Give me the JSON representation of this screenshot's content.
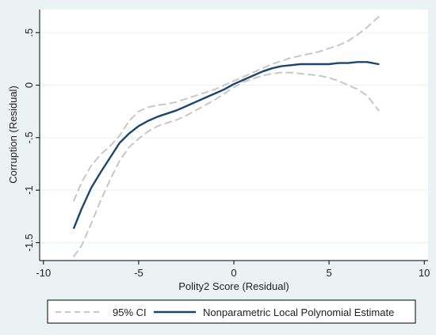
{
  "chart_data": {
    "type": "line",
    "title": "",
    "xlabel": "Polity2 Score (Residual)",
    "ylabel": "Corruption (Residual)",
    "xlim": [
      -10.2,
      10.2
    ],
    "ylim": [
      -1.67,
      0.72
    ],
    "x_ticks": [
      -10,
      -5,
      0,
      5,
      10
    ],
    "x_tick_labels": [
      "-10",
      "-5",
      "0",
      "5",
      "10"
    ],
    "y_ticks": [
      -1.5,
      -1,
      -0.5,
      0,
      0.5
    ],
    "y_tick_labels": [
      "-1.5",
      "-1",
      "-.5",
      "0",
      ".5"
    ],
    "grid": "horizontal",
    "legend_position": "bottom",
    "colors": {
      "background": "#eaf2f3",
      "plot_background": "#ffffff",
      "estimate": "#1a476f",
      "ci": "#c7c7c7"
    },
    "series": [
      {
        "name": "95% CI",
        "style": "dashed",
        "points": [
          [
            -8.4,
            -1.1
          ],
          [
            -8,
            -0.93
          ],
          [
            -7.5,
            -0.77
          ],
          [
            -7,
            -0.66
          ],
          [
            -6.5,
            -0.58
          ],
          [
            -6,
            -0.48
          ],
          [
            -5.5,
            -0.34
          ],
          [
            -5,
            -0.25
          ],
          [
            -4.5,
            -0.21
          ],
          [
            -4,
            -0.19
          ],
          [
            -3.5,
            -0.18
          ],
          [
            -3,
            -0.16
          ],
          [
            -2.5,
            -0.13
          ],
          [
            -2,
            -0.1
          ],
          [
            -1.5,
            -0.07
          ],
          [
            -1,
            -0.04
          ],
          [
            -0.5,
            0
          ],
          [
            0,
            0.04
          ],
          [
            0.5,
            0.08
          ],
          [
            1,
            0.12
          ],
          [
            1.5,
            0.16
          ],
          [
            2,
            0.2
          ],
          [
            2.5,
            0.23
          ],
          [
            3,
            0.26
          ],
          [
            3.5,
            0.28
          ],
          [
            4,
            0.3
          ],
          [
            4.5,
            0.32
          ],
          [
            5,
            0.35
          ],
          [
            5.5,
            0.38
          ],
          [
            6,
            0.42
          ],
          [
            6.5,
            0.48
          ],
          [
            7,
            0.55
          ],
          [
            7.6,
            0.65
          ]
        ]
      },
      {
        "name": "95% CI",
        "style": "dashed",
        "points": [
          [
            -8.4,
            -1.63
          ],
          [
            -8,
            -1.53
          ],
          [
            -7.5,
            -1.32
          ],
          [
            -7,
            -1.1
          ],
          [
            -6.5,
            -0.9
          ],
          [
            -6,
            -0.72
          ],
          [
            -5.5,
            -0.59
          ],
          [
            -5,
            -0.51
          ],
          [
            -4.5,
            -0.44
          ],
          [
            -4,
            -0.39
          ],
          [
            -3.5,
            -0.36
          ],
          [
            -3,
            -0.33
          ],
          [
            -2.5,
            -0.29
          ],
          [
            -2,
            -0.24
          ],
          [
            -1.5,
            -0.19
          ],
          [
            -1,
            -0.14
          ],
          [
            -0.5,
            -0.08
          ],
          [
            0,
            -0.02
          ],
          [
            0.5,
            0.03
          ],
          [
            1,
            0.06
          ],
          [
            1.5,
            0.09
          ],
          [
            2,
            0.11
          ],
          [
            2.5,
            0.12
          ],
          [
            3,
            0.12
          ],
          [
            3.5,
            0.11
          ],
          [
            4,
            0.1
          ],
          [
            4.5,
            0.09
          ],
          [
            5,
            0.07
          ],
          [
            5.5,
            0.04
          ],
          [
            6,
            0
          ],
          [
            6.5,
            -0.04
          ],
          [
            7,
            -0.1
          ],
          [
            7.6,
            -0.24
          ]
        ]
      },
      {
        "name": "Nonparametric Local Polynomial Estimate",
        "style": "solid",
        "points": [
          [
            -8.4,
            -1.36
          ],
          [
            -8,
            -1.18
          ],
          [
            -7.5,
            -0.98
          ],
          [
            -7,
            -0.83
          ],
          [
            -6.5,
            -0.69
          ],
          [
            -6,
            -0.55
          ],
          [
            -5.5,
            -0.46
          ],
          [
            -5,
            -0.39
          ],
          [
            -4.5,
            -0.34
          ],
          [
            -4,
            -0.3
          ],
          [
            -3.5,
            -0.27
          ],
          [
            -3,
            -0.24
          ],
          [
            -2.5,
            -0.2
          ],
          [
            -2,
            -0.16
          ],
          [
            -1.5,
            -0.12
          ],
          [
            -1,
            -0.08
          ],
          [
            -0.5,
            -0.04
          ],
          [
            0,
            0.01
          ],
          [
            0.5,
            0.05
          ],
          [
            1,
            0.09
          ],
          [
            1.5,
            0.13
          ],
          [
            2,
            0.16
          ],
          [
            2.5,
            0.18
          ],
          [
            3,
            0.19
          ],
          [
            3.5,
            0.2
          ],
          [
            4,
            0.2
          ],
          [
            4.5,
            0.2
          ],
          [
            5,
            0.2
          ],
          [
            5.5,
            0.21
          ],
          [
            6,
            0.21
          ],
          [
            6.5,
            0.22
          ],
          [
            7,
            0.22
          ],
          [
            7.6,
            0.2
          ]
        ]
      }
    ]
  }
}
